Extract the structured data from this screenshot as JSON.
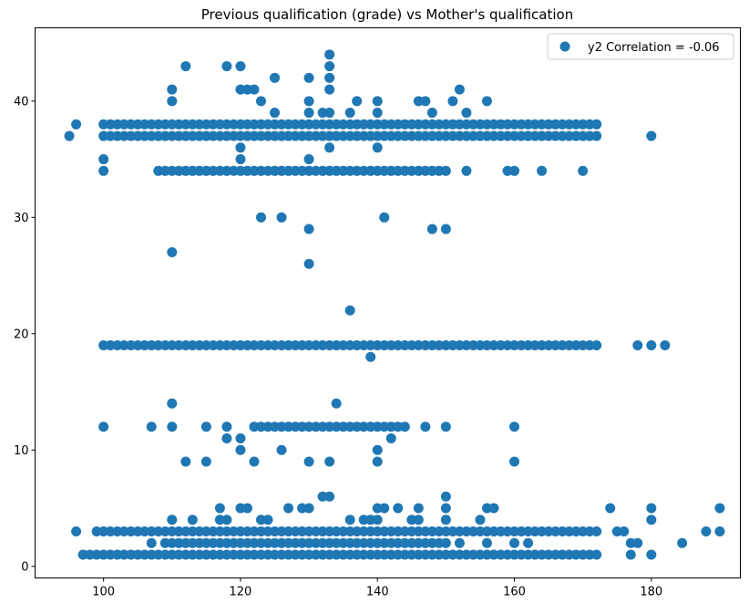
{
  "chart_data": {
    "type": "scatter",
    "title": "Previous qualification (grade) vs Mother's qualification",
    "xlabel": "",
    "ylabel": "",
    "xlim": [
      90,
      193
    ],
    "ylim": [
      -1,
      46.3
    ],
    "xticks": [
      100,
      120,
      140,
      160,
      180
    ],
    "yticks": [
      0,
      10,
      20,
      30,
      40
    ],
    "grid": false,
    "legend": {
      "position": "top-right"
    },
    "marker_color": "#1f77b4",
    "series": [
      {
        "name": "y2 Correlation = -0.06",
        "color": "#1f77b4",
        "bands": [
          {
            "y": 1,
            "x_from": 97,
            "x_to": 172,
            "step": 1
          },
          {
            "y": 3,
            "x_from": 100,
            "x_to": 172,
            "step": 1
          },
          {
            "y": 19,
            "x_from": 100,
            "x_to": 172,
            "step": 1
          },
          {
            "y": 37,
            "x_from": 100,
            "x_to": 172,
            "step": 1
          },
          {
            "y": 38,
            "x_from": 100,
            "x_to": 172,
            "step": 1
          },
          {
            "y": 34,
            "x_from": 108,
            "x_to": 150,
            "step": 1
          },
          {
            "y": 2,
            "x_from": 109,
            "x_to": 150,
            "step": 1
          },
          {
            "y": 12,
            "x_from": 122,
            "x_to": 143,
            "step": 1
          }
        ],
        "points": [
          [
            95,
            37
          ],
          [
            96,
            38
          ],
          [
            96,
            3
          ],
          [
            97,
            1
          ],
          [
            99,
            1
          ],
          [
            99,
            3
          ],
          [
            100,
            12
          ],
          [
            100,
            34
          ],
          [
            100,
            35
          ],
          [
            100,
            19
          ],
          [
            101,
            1
          ],
          [
            101,
            3
          ],
          [
            101,
            37
          ],
          [
            101,
            38
          ],
          [
            102,
            1
          ],
          [
            102,
            3
          ],
          [
            102,
            37
          ],
          [
            102,
            38
          ],
          [
            103,
            1
          ],
          [
            103,
            19
          ],
          [
            105,
            1
          ],
          [
            105,
            19
          ],
          [
            105,
            37
          ],
          [
            106,
            1
          ],
          [
            106,
            3
          ],
          [
            106,
            19
          ],
          [
            106,
            37
          ],
          [
            107,
            2
          ],
          [
            107,
            12
          ],
          [
            107,
            19
          ],
          [
            107,
            38
          ],
          [
            108,
            1
          ],
          [
            108,
            34
          ],
          [
            108,
            38
          ],
          [
            109,
            2
          ],
          [
            109,
            19
          ],
          [
            109,
            3
          ],
          [
            110,
            1
          ],
          [
            110,
            3
          ],
          [
            110,
            4
          ],
          [
            110,
            12
          ],
          [
            110,
            14
          ],
          [
            110,
            19
          ],
          [
            110,
            27
          ],
          [
            110,
            34
          ],
          [
            110,
            37
          ],
          [
            110,
            38
          ],
          [
            110,
            40
          ],
          [
            110,
            41
          ],
          [
            111,
            2
          ],
          [
            111,
            34
          ],
          [
            111,
            19
          ],
          [
            112,
            9
          ],
          [
            112,
            37
          ],
          [
            112,
            43
          ],
          [
            113,
            4
          ],
          [
            114,
            34
          ],
          [
            115,
            9
          ],
          [
            115,
            12
          ],
          [
            116,
            34
          ],
          [
            117,
            4
          ],
          [
            117,
            5
          ],
          [
            118,
            4
          ],
          [
            118,
            11
          ],
          [
            118,
            12
          ],
          [
            118,
            34
          ],
          [
            118,
            43
          ],
          [
            119,
            3
          ],
          [
            120,
            2
          ],
          [
            120,
            5
          ],
          [
            120,
            10
          ],
          [
            120,
            11
          ],
          [
            120,
            34
          ],
          [
            120,
            35
          ],
          [
            120,
            36
          ],
          [
            120,
            41
          ],
          [
            120,
            43
          ],
          [
            121,
            3
          ],
          [
            121,
            5
          ],
          [
            121,
            41
          ],
          [
            122,
            9
          ],
          [
            122,
            12
          ],
          [
            122,
            41
          ],
          [
            123,
            3
          ],
          [
            123,
            4
          ],
          [
            123,
            12
          ],
          [
            123,
            30
          ],
          [
            123,
            34
          ],
          [
            123,
            40
          ],
          [
            124,
            2
          ],
          [
            124,
            4
          ],
          [
            125,
            39
          ],
          [
            125,
            42
          ],
          [
            126,
            10
          ],
          [
            126,
            30
          ],
          [
            126,
            34
          ],
          [
            127,
            12
          ],
          [
            127,
            5
          ],
          [
            128,
            34
          ],
          [
            129,
            5
          ],
          [
            129,
            12
          ],
          [
            130,
            5
          ],
          [
            130,
            9
          ],
          [
            130,
            26
          ],
          [
            130,
            29
          ],
          [
            130,
            35
          ],
          [
            130,
            39
          ],
          [
            130,
            40
          ],
          [
            130,
            42
          ],
          [
            131,
            12
          ],
          [
            132,
            6
          ],
          [
            132,
            39
          ],
          [
            133,
            1
          ],
          [
            133,
            6
          ],
          [
            133,
            9
          ],
          [
            133,
            12
          ],
          [
            133,
            36
          ],
          [
            133,
            39
          ],
          [
            133,
            41
          ],
          [
            133,
            42
          ],
          [
            133,
            43
          ],
          [
            133,
            44
          ],
          [
            134,
            12
          ],
          [
            134,
            14
          ],
          [
            135,
            12
          ],
          [
            136,
            4
          ],
          [
            136,
            12
          ],
          [
            136,
            22
          ],
          [
            136,
            39
          ],
          [
            137,
            40
          ],
          [
            138,
            4
          ],
          [
            139,
            4
          ],
          [
            139,
            18
          ],
          [
            140,
            4
          ],
          [
            140,
            5
          ],
          [
            140,
            9
          ],
          [
            140,
            10
          ],
          [
            140,
            12
          ],
          [
            140,
            36
          ],
          [
            140,
            39
          ],
          [
            140,
            40
          ],
          [
            141,
            5
          ],
          [
            141,
            12
          ],
          [
            141,
            30
          ],
          [
            142,
            11
          ],
          [
            142,
            12
          ],
          [
            143,
            5
          ],
          [
            144,
            2
          ],
          [
            144,
            12
          ],
          [
            145,
            2
          ],
          [
            145,
            4
          ],
          [
            146,
            4
          ],
          [
            146,
            5
          ],
          [
            146,
            40
          ],
          [
            147,
            2
          ],
          [
            147,
            12
          ],
          [
            147,
            40
          ],
          [
            148,
            29
          ],
          [
            148,
            39
          ],
          [
            150,
            5
          ],
          [
            150,
            4
          ],
          [
            150,
            6
          ],
          [
            150,
            12
          ],
          [
            150,
            29
          ],
          [
            150,
            34
          ],
          [
            151,
            40
          ],
          [
            152,
            2
          ],
          [
            152,
            41
          ],
          [
            153,
            34
          ],
          [
            153,
            39
          ],
          [
            154,
            3
          ],
          [
            155,
            4
          ],
          [
            156,
            2
          ],
          [
            156,
            5
          ],
          [
            156,
            40
          ],
          [
            157,
            5
          ],
          [
            157,
            37
          ],
          [
            158,
            37
          ],
          [
            159,
            1
          ],
          [
            159,
            34
          ],
          [
            160,
            2
          ],
          [
            160,
            3
          ],
          [
            160,
            9
          ],
          [
            160,
            12
          ],
          [
            160,
            19
          ],
          [
            160,
            34
          ],
          [
            160,
            37
          ],
          [
            160,
            38
          ],
          [
            161,
            1
          ],
          [
            161,
            19
          ],
          [
            161,
            37
          ],
          [
            161,
            38
          ],
          [
            162,
            1
          ],
          [
            162,
            2
          ],
          [
            162,
            3
          ],
          [
            162,
            19
          ],
          [
            162,
            37
          ],
          [
            163,
            1
          ],
          [
            163,
            3
          ],
          [
            163,
            19
          ],
          [
            163,
            37
          ],
          [
            164,
            19
          ],
          [
            164,
            34
          ],
          [
            164,
            38
          ],
          [
            165,
            3
          ],
          [
            165,
            19
          ],
          [
            165,
            37
          ],
          [
            166,
            1
          ],
          [
            166,
            19
          ],
          [
            167,
            1
          ],
          [
            167,
            19
          ],
          [
            167,
            37
          ],
          [
            167,
            38
          ],
          [
            168,
            1
          ],
          [
            168,
            19
          ],
          [
            168,
            37
          ],
          [
            168,
            38
          ],
          [
            169,
            1
          ],
          [
            169,
            19
          ],
          [
            170,
            1
          ],
          [
            170,
            3
          ],
          [
            170,
            19
          ],
          [
            170,
            34
          ],
          [
            170,
            37
          ],
          [
            170,
            38
          ],
          [
            172,
            1
          ],
          [
            172,
            3
          ],
          [
            172,
            19
          ],
          [
            172,
            37
          ],
          [
            172,
            38
          ],
          [
            174,
            5
          ],
          [
            175,
            3
          ],
          [
            176,
            3
          ],
          [
            177,
            1
          ],
          [
            177,
            2
          ],
          [
            178,
            2
          ],
          [
            178,
            19
          ],
          [
            180,
            1
          ],
          [
            180,
            4
          ],
          [
            180,
            5
          ],
          [
            180,
            19
          ],
          [
            180,
            37
          ],
          [
            182,
            19
          ],
          [
            184.5,
            2
          ],
          [
            188,
            3
          ],
          [
            190,
            3
          ],
          [
            190,
            5
          ]
        ]
      }
    ]
  }
}
